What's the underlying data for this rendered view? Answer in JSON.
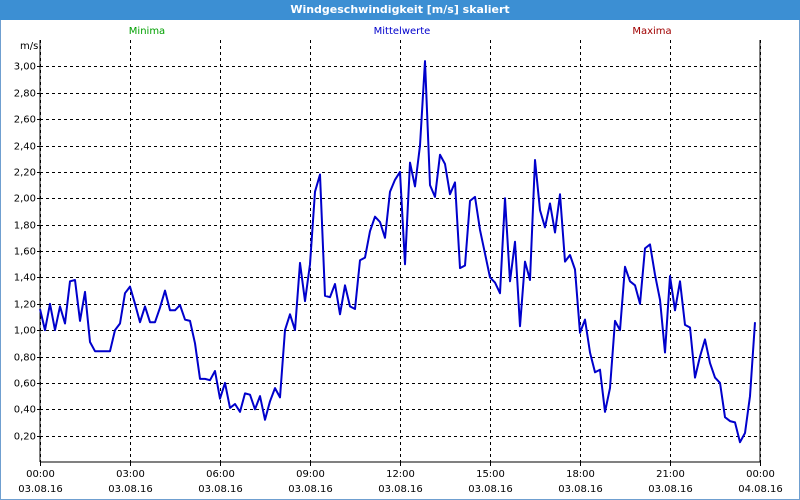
{
  "chart_data": {
    "type": "line",
    "title": "Windgeschwindigkeit [m/s] skaliert",
    "y_unit": "m/s",
    "other_labels": [
      {
        "text": "Minima",
        "color": "#00a000"
      },
      {
        "text": "Maxima",
        "color": "#a00000"
      }
    ],
    "x": [
      0,
      10,
      20,
      30,
      40,
      50,
      60,
      70,
      80,
      90,
      100,
      110,
      120,
      130,
      140,
      150,
      160,
      170,
      180,
      190,
      200,
      210,
      220,
      230,
      240,
      250,
      260,
      270,
      280,
      290,
      300,
      310,
      320,
      330,
      340,
      350,
      360,
      370,
      380,
      390,
      400,
      410,
      420,
      430,
      440,
      450,
      460,
      470,
      480,
      490,
      500,
      510,
      520,
      530,
      540,
      550,
      560,
      570,
      580,
      590,
      600,
      610,
      620,
      630,
      640,
      650,
      660,
      670,
      680,
      690,
      700,
      710,
      720,
      730,
      740,
      750,
      760,
      770,
      780,
      790,
      800,
      810,
      820,
      830,
      840,
      850,
      860,
      870,
      880,
      890,
      900,
      910,
      920,
      930,
      940,
      950,
      960,
      970,
      980,
      990,
      1000,
      1010,
      1020,
      1030,
      1040,
      1050,
      1060,
      1070,
      1080,
      1090,
      1100,
      1110,
      1120,
      1130,
      1140,
      1150,
      1160,
      1170,
      1180,
      1190,
      1200,
      1210,
      1220,
      1230,
      1240,
      1250,
      1260,
      1270,
      1280,
      1290,
      1300,
      1310,
      1320,
      1330,
      1340,
      1350,
      1360,
      1370,
      1380,
      1390,
      1400,
      1410,
      1420,
      1430
    ],
    "series": [
      {
        "name": "Mittelwerte",
        "color": "#0000cc",
        "values": [
          1.16,
          1.0,
          1.2,
          1.0,
          1.18,
          1.05,
          1.37,
          1.38,
          1.07,
          1.29,
          0.91,
          0.84,
          0.84,
          0.84,
          0.84,
          1.0,
          1.05,
          1.28,
          1.33,
          1.2,
          1.06,
          1.18,
          1.06,
          1.06,
          1.17,
          1.3,
          1.15,
          1.15,
          1.19,
          1.08,
          1.07,
          0.9,
          0.63,
          0.63,
          0.62,
          0.69,
          0.48,
          0.6,
          0.41,
          0.44,
          0.38,
          0.52,
          0.51,
          0.4,
          0.5,
          0.32,
          0.46,
          0.56,
          0.49,
          1.0,
          1.12,
          1.0,
          1.51,
          1.22,
          1.5,
          2.05,
          2.18,
          1.26,
          1.25,
          1.35,
          1.12,
          1.34,
          1.18,
          1.16,
          1.53,
          1.55,
          1.75,
          1.86,
          1.82,
          1.7,
          2.05,
          2.14,
          2.2,
          1.5,
          2.27,
          2.09,
          2.4,
          3.04,
          2.1,
          2.01,
          2.33,
          2.26,
          2.03,
          2.12,
          1.47,
          1.49,
          1.98,
          2.01,
          1.76,
          1.58,
          1.4,
          1.36,
          1.28,
          2.0,
          1.37,
          1.67,
          1.03,
          1.52,
          1.38,
          2.29,
          1.91,
          1.78,
          1.96,
          1.74,
          2.03,
          1.52,
          1.57,
          1.46,
          0.98,
          1.08,
          0.83,
          0.68,
          0.7,
          0.38,
          0.56,
          1.07,
          1.0,
          1.48,
          1.37,
          1.34,
          1.2,
          1.62,
          1.65,
          1.42,
          1.23,
          0.83,
          1.41,
          1.15,
          1.37,
          1.04,
          1.02,
          0.64,
          0.8,
          0.93,
          0.75,
          0.64,
          0.6,
          0.34,
          0.31,
          0.3,
          0.15,
          0.22,
          0.5,
          1.06
        ]
      }
    ],
    "xlim": [
      0,
      1440
    ],
    "xticks": [
      {
        "value": 0,
        "label": "00:00"
      },
      {
        "value": 180,
        "label": "03:00"
      },
      {
        "value": 360,
        "label": "06:00"
      },
      {
        "value": 540,
        "label": "09:00"
      },
      {
        "value": 720,
        "label": "12:00"
      },
      {
        "value": 900,
        "label": "15:00"
      },
      {
        "value": 1080,
        "label": "18:00"
      },
      {
        "value": 1260,
        "label": "21:00"
      },
      {
        "value": 1440,
        "label": "00:00"
      }
    ],
    "xtick_dates": [
      "03.08.16",
      "03.08.16",
      "03.08.16",
      "03.08.16",
      "03.08.16",
      "03.08.16",
      "03.08.16",
      "03.08.16",
      "04.08.16"
    ],
    "ylim": [
      0,
      3.2
    ],
    "yticks": [
      {
        "value": 0.2,
        "label": "0,20"
      },
      {
        "value": 0.4,
        "label": "0,40"
      },
      {
        "value": 0.6,
        "label": "0,60"
      },
      {
        "value": 0.8,
        "label": "0,80"
      },
      {
        "value": 1.0,
        "label": "1,00"
      },
      {
        "value": 1.2,
        "label": "1,20"
      },
      {
        "value": 1.4,
        "label": "1,40"
      },
      {
        "value": 1.6,
        "label": "1,60"
      },
      {
        "value": 1.8,
        "label": "1,80"
      },
      {
        "value": 2.0,
        "label": "2,00"
      },
      {
        "value": 2.2,
        "label": "2,20"
      },
      {
        "value": 2.4,
        "label": "2,40"
      },
      {
        "value": 2.6,
        "label": "2,60"
      },
      {
        "value": 2.8,
        "label": "2,80"
      },
      {
        "value": 3.0,
        "label": "3,00"
      }
    ],
    "grid": true
  }
}
